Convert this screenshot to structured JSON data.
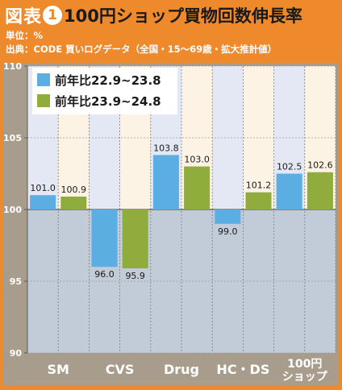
{
  "header": {
    "figure_label": "図表",
    "figure_number": "1",
    "title": "100円ショップ買物回数伸長率",
    "unit_line": "単位：%",
    "source_line": "出典：CODE 買いログデータ（全国・15～69歳・拡大推計値）"
  },
  "colors": {
    "series1": "#5aaee2",
    "series2": "#8fac3c",
    "axis_band": "#a89d8c",
    "below_band": "#c2cbd8",
    "stripe_light": "#e4e8f4",
    "stripe_cream": "#fcf3e4",
    "outer_orange": "#ee8a2c"
  },
  "chart_data": {
    "type": "bar",
    "categories": [
      "SM",
      "CVS",
      "Drug",
      "HC・DS",
      "100円ショップ"
    ],
    "category_label_lines": [
      [
        "SM"
      ],
      [
        "CVS"
      ],
      [
        "Drug"
      ],
      [
        "HC・DS"
      ],
      [
        "100円",
        "ショップ"
      ]
    ],
    "series": [
      {
        "name": "前年比22.9~23.8",
        "values": [
          101.0,
          96.0,
          103.8,
          99.0,
          102.5
        ]
      },
      {
        "name": "前年比23.9~24.8",
        "values": [
          100.9,
          95.9,
          103.0,
          101.2,
          102.6
        ]
      }
    ],
    "baseline": 100,
    "ylim": [
      90,
      110
    ],
    "yticks": [
      90,
      95,
      100,
      105,
      110
    ],
    "xlabel": "",
    "ylabel": "",
    "grid": true,
    "legend_position": "top-left"
  }
}
